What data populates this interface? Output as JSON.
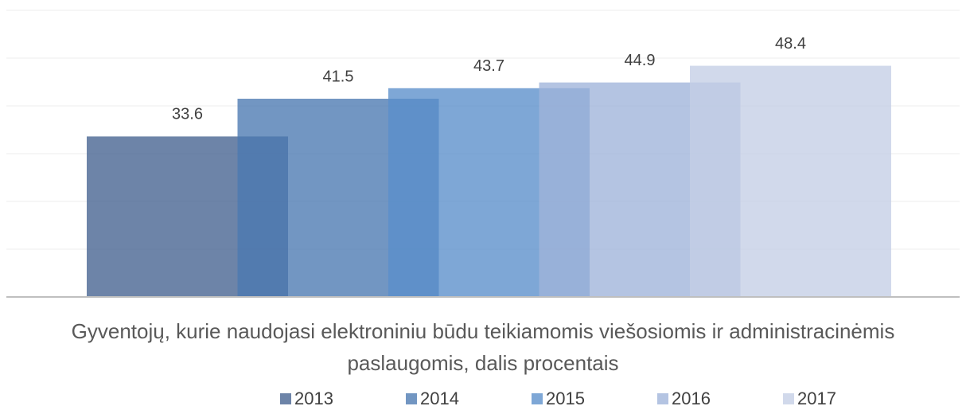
{
  "chart_data": {
    "type": "bar",
    "categories": [
      "Gyventojų, kurie naudojasi elektroniniu būdu teikiamomis viešosiomis ir administracinėmis paslaugomis, dalis procentais"
    ],
    "series": [
      {
        "name": "2013",
        "color": "#44618f",
        "values": [
          33.6
        ]
      },
      {
        "name": "2014",
        "color": "#4a78b1",
        "values": [
          41.5
        ]
      },
      {
        "name": "2015",
        "color": "#5a8ecb",
        "values": [
          43.7
        ]
      },
      {
        "name": "2016",
        "color": "#9fb3da",
        "values": [
          44.9
        ]
      },
      {
        "name": "2017",
        "color": "#c4cee5",
        "values": [
          48.4
        ]
      }
    ],
    "ylim": [
      0,
      60
    ],
    "yticks": [
      0,
      10,
      20,
      30,
      40,
      50,
      60
    ],
    "grid": true,
    "legend": "bottom"
  }
}
